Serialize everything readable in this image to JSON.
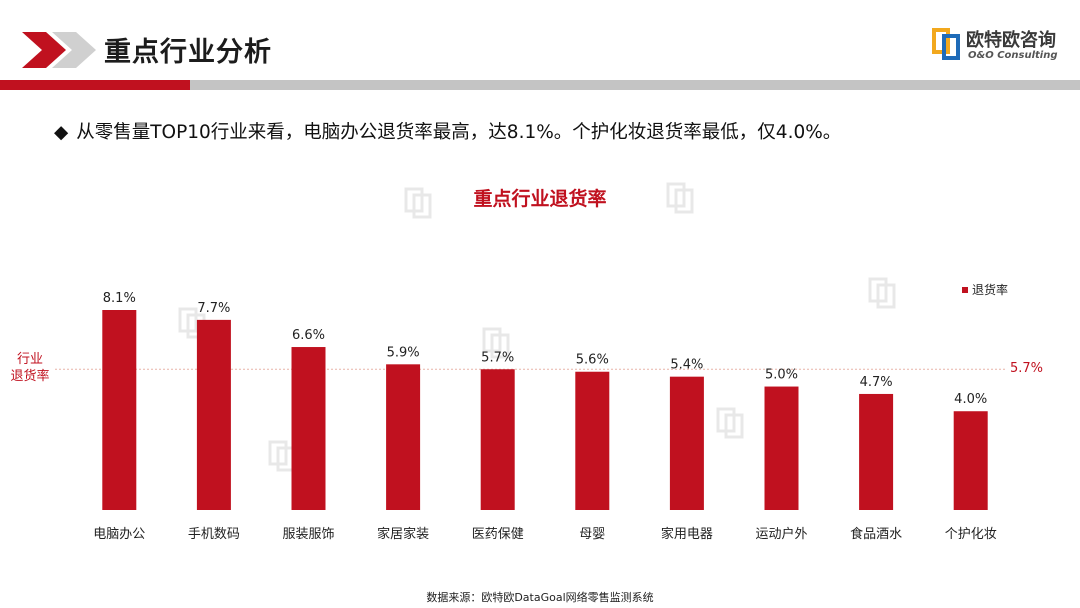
{
  "header": {
    "title": "重点行业分析",
    "logo_cn": "欧特欧咨询",
    "logo_en": "O&O Consulting"
  },
  "bullet": {
    "text": "从零售量TOP10行业来看，电脑办公退货率最高，达8.1%。个护化妆退货率最低，仅4.0%。"
  },
  "watermark": {
    "text": "欧特欧咨询",
    "subtext": "O&O Consulting"
  },
  "chart_data": {
    "type": "bar",
    "title": "重点行业退货率",
    "categories": [
      "电脑办公",
      "手机数码",
      "服装服饰",
      "家居家装",
      "医药保健",
      "母婴",
      "家用电器",
      "运动户外",
      "食品酒水",
      "个护化妆"
    ],
    "series": [
      {
        "name": "退货率",
        "values": [
          8.1,
          7.7,
          6.6,
          5.9,
          5.7,
          5.6,
          5.4,
          5.0,
          4.7,
          4.0
        ],
        "color": "#c0111f"
      }
    ],
    "value_suffix": "%",
    "data_labels": [
      "8.1%",
      "7.7%",
      "6.6%",
      "5.9%",
      "5.7%",
      "5.6%",
      "5.4%",
      "5.0%",
      "4.7%",
      "4.0%"
    ],
    "legend": {
      "label": "退货率",
      "placement": "top-right"
    },
    "reference_line": {
      "label": "行业退货率",
      "label_line1": "行业",
      "label_line2": "退货率",
      "value": 5.7,
      "display": "5.7%",
      "color": "#c0111f"
    },
    "grid": false,
    "ylim": [
      0,
      8.1
    ]
  },
  "footer": {
    "source": "数据来源：欧特欧DataGoal网络零售监测系统"
  },
  "colors": {
    "accent": "#c0111f",
    "rule_gray": "#c4c4c4",
    "chevron_gray": "#d0d0d0"
  }
}
